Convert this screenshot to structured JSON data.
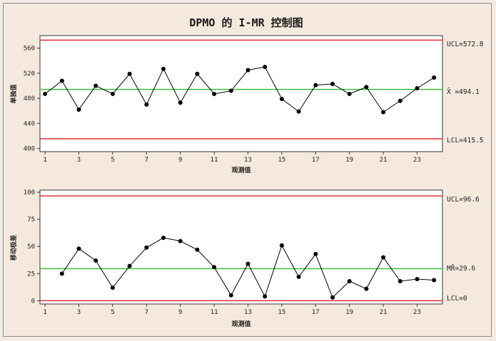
{
  "chart_data": {
    "type": "line",
    "title": "DPMO 的 I-MR 控制图",
    "colors": {
      "control_limit": "#e0303a",
      "center_line": "#3cc23c",
      "data": "#000000",
      "plot_bg": "#ffffff"
    },
    "charts": [
      {
        "id": "individuals",
        "type": "line",
        "xlabel": "观测值",
        "ylabel": "单独值",
        "ylim": [
          395,
          580
        ],
        "yticks": [
          400,
          440,
          480,
          520,
          560
        ],
        "x_ticks": [
          1,
          3,
          5,
          7,
          9,
          11,
          13,
          15,
          17,
          19,
          21,
          23
        ],
        "x": [
          1,
          2,
          3,
          4,
          5,
          6,
          7,
          8,
          9,
          10,
          11,
          12,
          13,
          14,
          15,
          16,
          17,
          18,
          19,
          20,
          21,
          22,
          23,
          24
        ],
        "values": [
          487,
          508,
          462,
          500,
          487,
          519,
          470,
          527,
          473,
          519,
          487,
          492,
          525,
          530,
          479,
          459,
          501,
          503,
          487,
          498,
          458,
          476,
          496,
          513
        ],
        "ucl": 572.8,
        "center": 494.1,
        "lcl": 415.5,
        "ucl_label": "UCL=572.8",
        "center_label": "X̄ =494.1",
        "lcl_label": "LCL=415.5"
      },
      {
        "id": "moving_range",
        "type": "line",
        "xlabel": "观测值",
        "ylabel": "移动极差",
        "ylim": [
          -3,
          102
        ],
        "yticks": [
          0,
          25,
          50,
          75,
          100
        ],
        "x_ticks": [
          1,
          3,
          5,
          7,
          9,
          11,
          13,
          15,
          17,
          19,
          21,
          23
        ],
        "x": [
          2,
          3,
          4,
          5,
          6,
          7,
          8,
          9,
          10,
          11,
          12,
          13,
          14,
          15,
          16,
          17,
          18,
          19,
          20,
          21,
          22,
          23,
          24
        ],
        "values": [
          25,
          48,
          37,
          12,
          32,
          49,
          58,
          55,
          47,
          31,
          5,
          34,
          4,
          51,
          22,
          43,
          3,
          18,
          11,
          40,
          18,
          20,
          19
        ],
        "ucl": 96.6,
        "center": 29.6,
        "lcl": 0,
        "ucl_label": "UCL=96.6",
        "center_label": "MR̄=29.6",
        "lcl_label": "LCL=0"
      }
    ]
  }
}
